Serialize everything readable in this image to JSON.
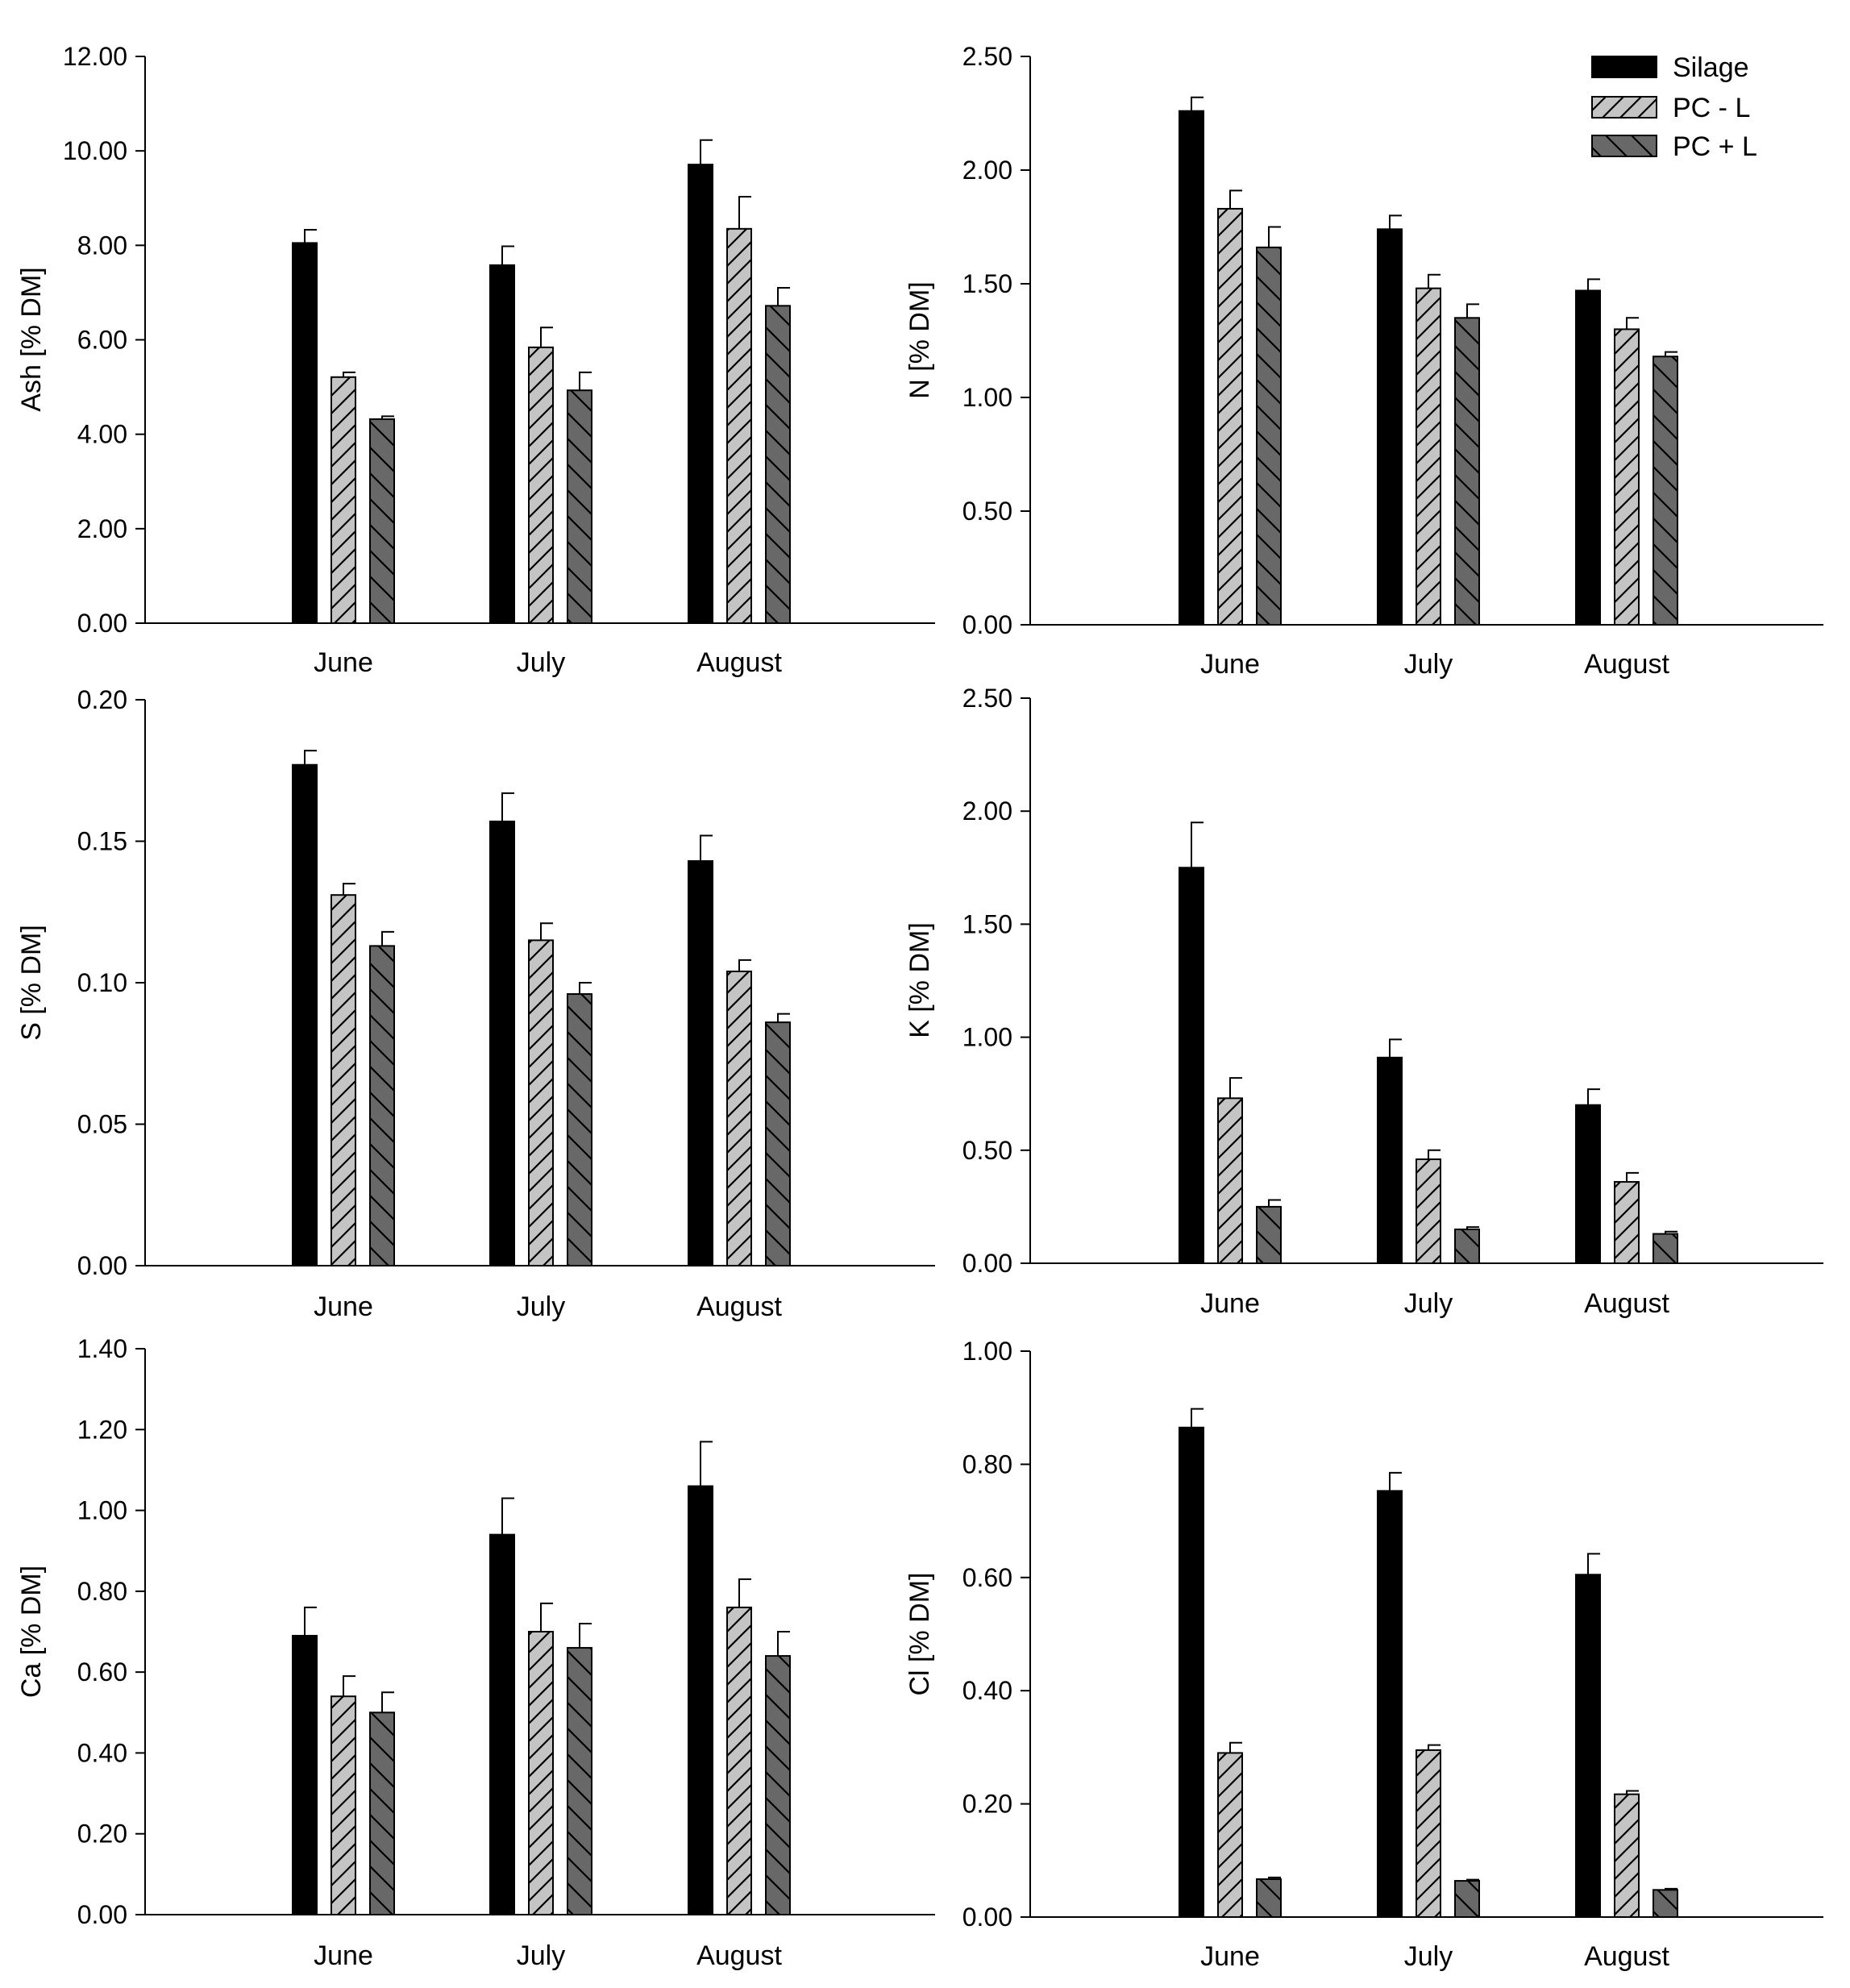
{
  "colors": {
    "silage": "#000000",
    "pc_minus_l": "#c4c4c4",
    "pc_plus_l": "#686868",
    "axis": "#000000"
  },
  "legend": {
    "entries": [
      {
        "label": "Silage",
        "pattern": "solid"
      },
      {
        "label": "PC - L",
        "pattern": "hatch-forward"
      },
      {
        "label": "PC + L",
        "pattern": "hatch-back"
      }
    ],
    "placement": "top-right of N panel"
  },
  "chart_data": [
    {
      "type": "bar",
      "id": "ash",
      "ylabel": "Ash [% DM]",
      "ylim": [
        0,
        12
      ],
      "yticks": [
        0,
        2,
        4,
        6,
        8,
        10,
        12
      ],
      "tick_labels": [
        "0.00",
        "2.00",
        "4.00",
        "6.00",
        "8.00",
        "10.00",
        "12.00"
      ],
      "categories": [
        "June",
        "July",
        "August"
      ],
      "series": [
        {
          "name": "Silage",
          "values": [
            8.05,
            7.58,
            9.71
          ],
          "errors": [
            0.28,
            0.4,
            0.52
          ]
        },
        {
          "name": "PC - L",
          "values": [
            5.21,
            5.84,
            8.35
          ],
          "errors": [
            0.1,
            0.42,
            0.68
          ]
        },
        {
          "name": "PC + L",
          "values": [
            4.32,
            4.93,
            6.72
          ],
          "errors": [
            0.06,
            0.38,
            0.38
          ]
        }
      ]
    },
    {
      "type": "bar",
      "id": "n",
      "ylabel": "N [% DM]",
      "ylim": [
        0,
        2.5
      ],
      "yticks": [
        0,
        0.5,
        1,
        1.5,
        2,
        2.5
      ],
      "tick_labels": [
        "0.00",
        "0.50",
        "1.00",
        "1.50",
        "2.00",
        "2.50"
      ],
      "categories": [
        "June",
        "July",
        "August"
      ],
      "series": [
        {
          "name": "Silage",
          "values": [
            2.26,
            1.74,
            1.47
          ],
          "errors": [
            0.06,
            0.06,
            0.05
          ]
        },
        {
          "name": "PC - L",
          "values": [
            1.83,
            1.48,
            1.3
          ],
          "errors": [
            0.08,
            0.06,
            0.05
          ]
        },
        {
          "name": "PC + L",
          "values": [
            1.66,
            1.35,
            1.18
          ],
          "errors": [
            0.09,
            0.06,
            0.02
          ]
        }
      ]
    },
    {
      "type": "bar",
      "id": "s",
      "ylabel": "S [% DM]",
      "ylim": [
        0,
        0.2
      ],
      "yticks": [
        0,
        0.05,
        0.1,
        0.15,
        0.2
      ],
      "tick_labels": [
        "0.00",
        "0.05",
        "0.10",
        "0.15",
        "0.20"
      ],
      "categories": [
        "June",
        "July",
        "August"
      ],
      "series": [
        {
          "name": "Silage",
          "values": [
            0.177,
            0.157,
            0.143
          ],
          "errors": [
            0.005,
            0.01,
            0.009
          ]
        },
        {
          "name": "PC - L",
          "values": [
            0.131,
            0.115,
            0.104
          ],
          "errors": [
            0.004,
            0.006,
            0.004
          ]
        },
        {
          "name": "PC + L",
          "values": [
            0.113,
            0.096,
            0.086
          ],
          "errors": [
            0.005,
            0.004,
            0.003
          ]
        }
      ]
    },
    {
      "type": "bar",
      "id": "k",
      "ylabel": "K [% DM]",
      "ylim": [
        0,
        2.5
      ],
      "yticks": [
        0,
        0.5,
        1,
        1.5,
        2,
        2.5
      ],
      "tick_labels": [
        "0.00",
        "0.50",
        "1.00",
        "1.50",
        "2.00",
        "2.50"
      ],
      "categories": [
        "June",
        "July",
        "August"
      ],
      "series": [
        {
          "name": "Silage",
          "values": [
            1.75,
            0.91,
            0.7
          ],
          "errors": [
            0.2,
            0.08,
            0.07
          ]
        },
        {
          "name": "PC - L",
          "values": [
            0.73,
            0.46,
            0.36
          ],
          "errors": [
            0.09,
            0.04,
            0.04
          ]
        },
        {
          "name": "PC + L",
          "values": [
            0.25,
            0.15,
            0.13
          ],
          "errors": [
            0.03,
            0.01,
            0.01
          ]
        }
      ]
    },
    {
      "type": "bar",
      "id": "ca",
      "ylabel": "Ca [% DM]",
      "ylim": [
        0,
        1.4
      ],
      "yticks": [
        0,
        0.2,
        0.4,
        0.6,
        0.8,
        1,
        1.2,
        1.4
      ],
      "tick_labels": [
        "0.00",
        "0.20",
        "0.40",
        "0.60",
        "0.80",
        "1.00",
        "1.20",
        "1.40"
      ],
      "categories": [
        "June",
        "July",
        "August"
      ],
      "series": [
        {
          "name": "Silage",
          "values": [
            0.69,
            0.94,
            1.06
          ],
          "errors": [
            0.07,
            0.09,
            0.11
          ]
        },
        {
          "name": "PC - L",
          "values": [
            0.54,
            0.7,
            0.76
          ],
          "errors": [
            0.05,
            0.07,
            0.07
          ]
        },
        {
          "name": "PC + L",
          "values": [
            0.5,
            0.66,
            0.64
          ],
          "errors": [
            0.05,
            0.06,
            0.06
          ]
        }
      ]
    },
    {
      "type": "bar",
      "id": "cl",
      "ylabel": "Cl [% DM]",
      "ylim": [
        0,
        1
      ],
      "yticks": [
        0,
        0.2,
        0.4,
        0.6,
        0.8,
        1
      ],
      "tick_labels": [
        "0.00",
        "0.20",
        "0.40",
        "0.60",
        "0.80",
        "1.00"
      ],
      "categories": [
        "June",
        "July",
        "August"
      ],
      "series": [
        {
          "name": "Silage",
          "values": [
            0.865,
            0.753,
            0.605
          ],
          "errors": [
            0.033,
            0.032,
            0.037
          ]
        },
        {
          "name": "PC - L",
          "values": [
            0.29,
            0.295,
            0.217
          ],
          "errors": [
            0.018,
            0.009,
            0.006
          ]
        },
        {
          "name": "PC + L",
          "values": [
            0.067,
            0.064,
            0.048
          ],
          "errors": [
            0.003,
            0.002,
            0.002
          ]
        }
      ]
    }
  ]
}
